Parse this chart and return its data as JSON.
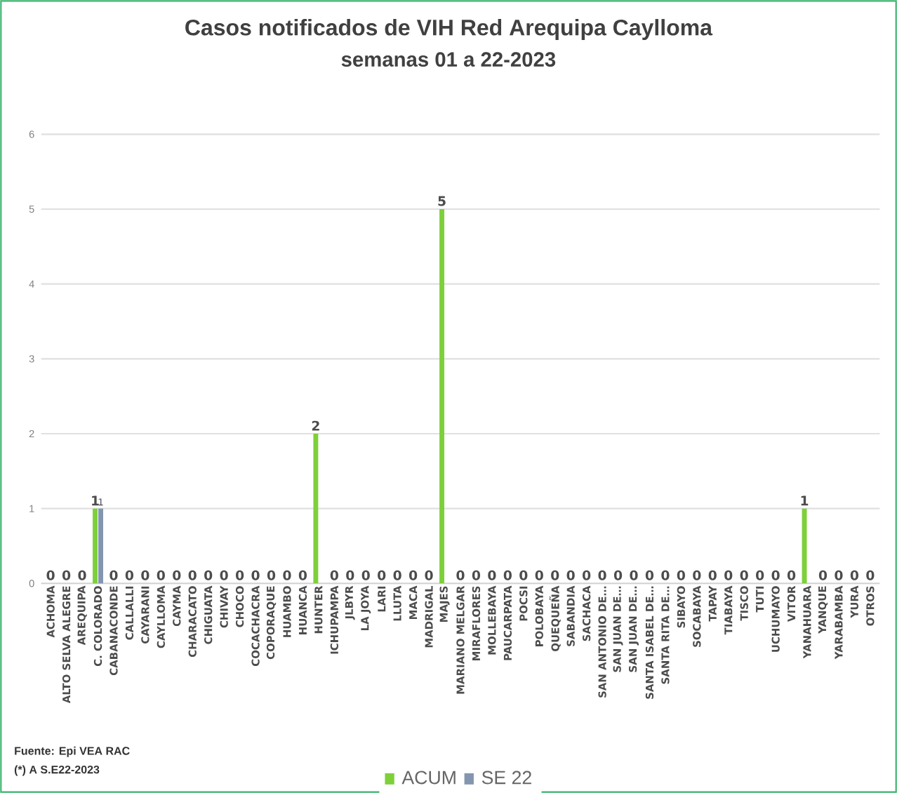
{
  "chart_data": {
    "type": "bar",
    "title": "Casos notificados de VIH Red Arequipa Caylloma",
    "subtitle": "semanas 01 a 22-2023",
    "categories": [
      "ACHOMA",
      "ALTO SELVA ALEGRE",
      "AREQUIPA",
      "C. COLORADO",
      "CABANACONDE",
      "CALLALLI",
      "CAYARANI",
      "CAYLLOMA",
      "CAYMA",
      "CHARACATO",
      "CHIGUATA",
      "CHIVAY",
      "CHOCO",
      "COCACHACRA",
      "COPORAQUE",
      "HUAMBO",
      "HUANCA",
      "HUNTER",
      "ICHUPAMPA",
      "JLBYR",
      "LA JOYA",
      "LARI",
      "LLUTA",
      "MACA",
      "MADRIGAL",
      "MAJES",
      "MARIANO MELGAR",
      "MIRAFLORES",
      "MOLLEBAYA",
      "PAUCARPATA",
      "POCSI",
      "POLOBAYA",
      "QUEQUEÑA",
      "SABANDIA",
      "SACHACA",
      "SAN ANTONIO DE…",
      "SAN JUAN DE…",
      "SAN JUAN DE…",
      "SANTA ISABEL DE…",
      "SANTA RITA DE…",
      "SIBAYO",
      "SOCABAYA",
      "TAPAY",
      "TIABAYA",
      "TISCO",
      "TUTI",
      "UCHUMAYO",
      "VITOR",
      "YANAHUARA",
      "YANQUE",
      "YARABAMBA",
      "YURA",
      "OTROS"
    ],
    "series": [
      {
        "name": "ACUM",
        "color": "#7ed03a",
        "values": [
          0,
          0,
          0,
          1,
          0,
          0,
          0,
          0,
          0,
          0,
          0,
          0,
          0,
          0,
          0,
          0,
          0,
          2,
          0,
          0,
          0,
          0,
          0,
          0,
          0,
          5,
          0,
          0,
          0,
          0,
          0,
          0,
          0,
          0,
          0,
          0,
          0,
          0,
          0,
          0,
          0,
          0,
          0,
          0,
          0,
          0,
          0,
          0,
          1,
          0,
          0,
          0,
          0
        ],
        "value_labels": [
          "0",
          "0",
          "0",
          "1",
          "0",
          "0",
          "0",
          "0",
          "0",
          "0",
          "0",
          "0",
          "0",
          "0",
          "0",
          "0",
          "0",
          "2",
          "0",
          "0",
          "0",
          "0",
          "0",
          "0",
          "0",
          "5",
          "0",
          "0",
          "0",
          "0",
          "0",
          "0",
          "0",
          "0",
          "0",
          "0",
          "0",
          "0",
          "0",
          "0",
          "0",
          "0",
          "0",
          "0",
          "0",
          "0",
          "0",
          "0",
          "1",
          "0",
          "0",
          "0",
          "0"
        ]
      },
      {
        "name": "SE 22",
        "color": "#8496ae",
        "values": [
          null,
          null,
          null,
          1,
          null,
          null,
          null,
          null,
          null,
          null,
          null,
          null,
          null,
          null,
          null,
          null,
          null,
          null,
          null,
          null,
          null,
          null,
          null,
          null,
          null,
          null,
          null,
          null,
          null,
          null,
          null,
          null,
          null,
          null,
          null,
          null,
          null,
          null,
          null,
          null,
          null,
          null,
          null,
          null,
          null,
          null,
          null,
          null,
          null,
          null,
          null,
          null,
          null
        ],
        "value_labels": [
          null,
          null,
          null,
          "1",
          null,
          null,
          null,
          null,
          null,
          null,
          null,
          null,
          null,
          null,
          null,
          null,
          null,
          null,
          null,
          null,
          null,
          null,
          null,
          null,
          null,
          null,
          null,
          null,
          null,
          null,
          null,
          null,
          null,
          null,
          null,
          null,
          null,
          null,
          null,
          null,
          null,
          null,
          null,
          null,
          null,
          null,
          null,
          null,
          null,
          null,
          null,
          null,
          null
        ]
      }
    ],
    "ylim": [
      0,
      6
    ],
    "yticks": [
      0,
      1,
      2,
      3,
      4,
      5,
      6
    ],
    "grid": "y",
    "legend": "bottom",
    "annotations": [
      "Fuente: Epi VEA RAC",
      "(*) A S.E22-2023"
    ]
  }
}
